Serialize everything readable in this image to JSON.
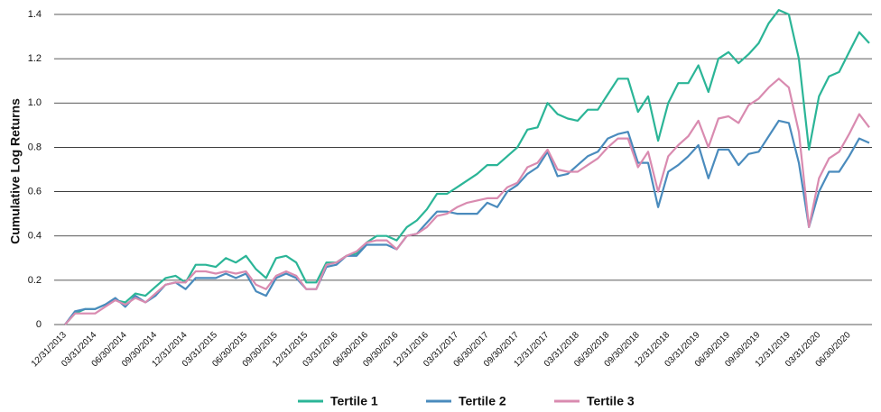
{
  "chart_data": {
    "type": "line",
    "y_label": "Cumulative Log Returns",
    "categories": [
      "12/31/2013",
      null,
      null,
      "03/31/2014",
      null,
      null,
      "06/30/2014",
      null,
      null,
      "09/30/2014",
      null,
      null,
      "12/31/2014",
      null,
      null,
      "03/31/2015",
      null,
      null,
      "06/30/2015",
      null,
      null,
      "09/30/2015",
      null,
      null,
      "12/31/2015",
      null,
      null,
      "03/31/2016",
      null,
      null,
      "06/30/2016",
      null,
      null,
      "09/30/2016",
      null,
      null,
      "12/31/2016",
      null,
      null,
      "03/31/2017",
      null,
      null,
      "06/30/2017",
      null,
      null,
      "09/30/2017",
      null,
      null,
      "12/31/2017",
      null,
      null,
      "03/31/2018",
      null,
      null,
      "06/30/2018",
      null,
      null,
      "09/30/2018",
      null,
      null,
      "12/31/2018",
      null,
      null,
      "03/31/2019",
      null,
      null,
      "06/30/2019",
      null,
      null,
      "09/30/2019",
      null,
      null,
      "12/31/2019",
      null,
      null,
      "03/31/2020",
      null,
      null,
      "06/30/2020",
      null,
      null
    ],
    "series": [
      {
        "name": "Tertile 1",
        "color": "#2bb597",
        "values": [
          0,
          0.05,
          0.07,
          0.07,
          0.09,
          0.11,
          0.1,
          0.14,
          0.13,
          0.17,
          0.21,
          0.22,
          0.19,
          0.27,
          0.27,
          0.26,
          0.3,
          0.28,
          0.31,
          0.25,
          0.21,
          0.3,
          0.31,
          0.28,
          0.19,
          0.19,
          0.28,
          0.28,
          0.31,
          0.32,
          0.37,
          0.4,
          0.4,
          0.38,
          0.44,
          0.47,
          0.52,
          0.59,
          0.59,
          0.62,
          0.65,
          0.68,
          0.72,
          0.72,
          0.76,
          0.8,
          0.88,
          0.89,
          1.0,
          0.95,
          0.93,
          0.92,
          0.97,
          0.97,
          1.04,
          1.11,
          1.11,
          0.96,
          1.03,
          0.83,
          1.0,
          1.09,
          1.09,
          1.17,
          1.05,
          1.2,
          1.23,
          1.18,
          1.22,
          1.27,
          1.36,
          1.42,
          1.4,
          1.2,
          0.79,
          1.03,
          1.12,
          1.14,
          1.23,
          1.32,
          1.27
        ]
      },
      {
        "name": "Tertile 2",
        "color": "#4a8bbd",
        "values": [
          0,
          0.06,
          0.07,
          0.07,
          0.09,
          0.12,
          0.08,
          0.13,
          0.1,
          0.13,
          0.18,
          0.19,
          0.16,
          0.21,
          0.21,
          0.21,
          0.23,
          0.21,
          0.23,
          0.15,
          0.13,
          0.21,
          0.23,
          0.21,
          0.16,
          0.16,
          0.26,
          0.27,
          0.31,
          0.31,
          0.36,
          0.36,
          0.36,
          0.34,
          0.4,
          0.41,
          0.46,
          0.51,
          0.51,
          0.5,
          0.5,
          0.5,
          0.55,
          0.53,
          0.6,
          0.63,
          0.68,
          0.71,
          0.78,
          0.67,
          0.68,
          0.72,
          0.76,
          0.78,
          0.84,
          0.86,
          0.87,
          0.73,
          0.73,
          0.53,
          0.69,
          0.72,
          0.76,
          0.81,
          0.66,
          0.79,
          0.79,
          0.72,
          0.77,
          0.78,
          0.85,
          0.92,
          0.91,
          0.73,
          0.44,
          0.6,
          0.69,
          0.69,
          0.76,
          0.84,
          0.82
        ]
      },
      {
        "name": "Tertile 3",
        "color": "#d98bb0",
        "values": [
          0,
          0.05,
          0.05,
          0.05,
          0.08,
          0.11,
          0.09,
          0.12,
          0.1,
          0.14,
          0.18,
          0.19,
          0.19,
          0.24,
          0.24,
          0.23,
          0.24,
          0.23,
          0.24,
          0.18,
          0.16,
          0.22,
          0.24,
          0.22,
          0.16,
          0.16,
          0.27,
          0.28,
          0.31,
          0.33,
          0.37,
          0.38,
          0.38,
          0.34,
          0.4,
          0.41,
          0.44,
          0.49,
          0.5,
          0.53,
          0.55,
          0.56,
          0.57,
          0.57,
          0.62,
          0.64,
          0.71,
          0.73,
          0.79,
          0.7,
          0.69,
          0.69,
          0.72,
          0.75,
          0.8,
          0.84,
          0.84,
          0.71,
          0.78,
          0.6,
          0.76,
          0.81,
          0.85,
          0.92,
          0.8,
          0.93,
          0.94,
          0.91,
          0.99,
          1.02,
          1.07,
          1.11,
          1.07,
          0.87,
          0.44,
          0.66,
          0.75,
          0.78,
          0.86,
          0.95,
          0.89
        ]
      }
    ],
    "ylim": [
      0,
      1.4
    ],
    "yticks": [
      0,
      0.2,
      0.4,
      0.6,
      0.8,
      {
        "value": 1,
        "label": "1.0"
      },
      1.2,
      1.4
    ],
    "grid": true
  }
}
